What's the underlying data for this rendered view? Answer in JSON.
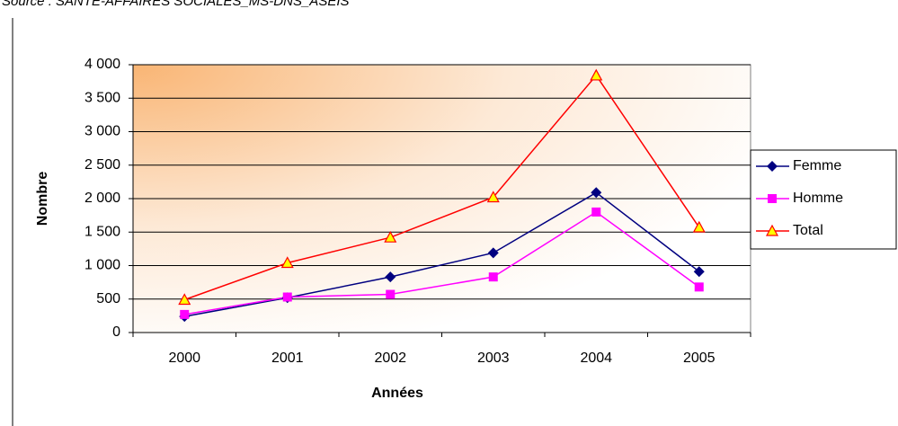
{
  "source": "Source : SANTE-AFFAIRES SOCIALES_MS-DNS_ASEIS",
  "chart_data": {
    "type": "line",
    "xlabel": "Années",
    "ylabel": "Nombre",
    "categories": [
      "2000",
      "2001",
      "2002",
      "2003",
      "2004",
      "2005"
    ],
    "series": [
      {
        "name": "Femme",
        "color": "#000080",
        "marker": "diamond",
        "values": [
          240,
          520,
          830,
          1190,
          2090,
          910
        ]
      },
      {
        "name": "Homme",
        "color": "#ff00ff",
        "marker": "square",
        "values": [
          270,
          530,
          570,
          830,
          1800,
          680
        ]
      },
      {
        "name": "Total",
        "color": "#ff0000",
        "marker": "triangle",
        "values": [
          490,
          1040,
          1420,
          2020,
          3840,
          1570
        ]
      }
    ],
    "ylim": [
      0,
      4000
    ],
    "yticks": [
      0,
      500,
      {
        "value": 1000,
        "label": "1 000"
      },
      {
        "value": 1500,
        "label": "1 500"
      },
      {
        "value": 2000,
        "label": "2 000"
      },
      {
        "value": 2500,
        "label": "2 500"
      },
      {
        "value": 3000,
        "label": "3 000"
      },
      {
        "value": 3500,
        "label": "3 500"
      },
      {
        "value": 4000,
        "label": "4 000"
      }
    ],
    "grid": true,
    "legend": "right"
  }
}
